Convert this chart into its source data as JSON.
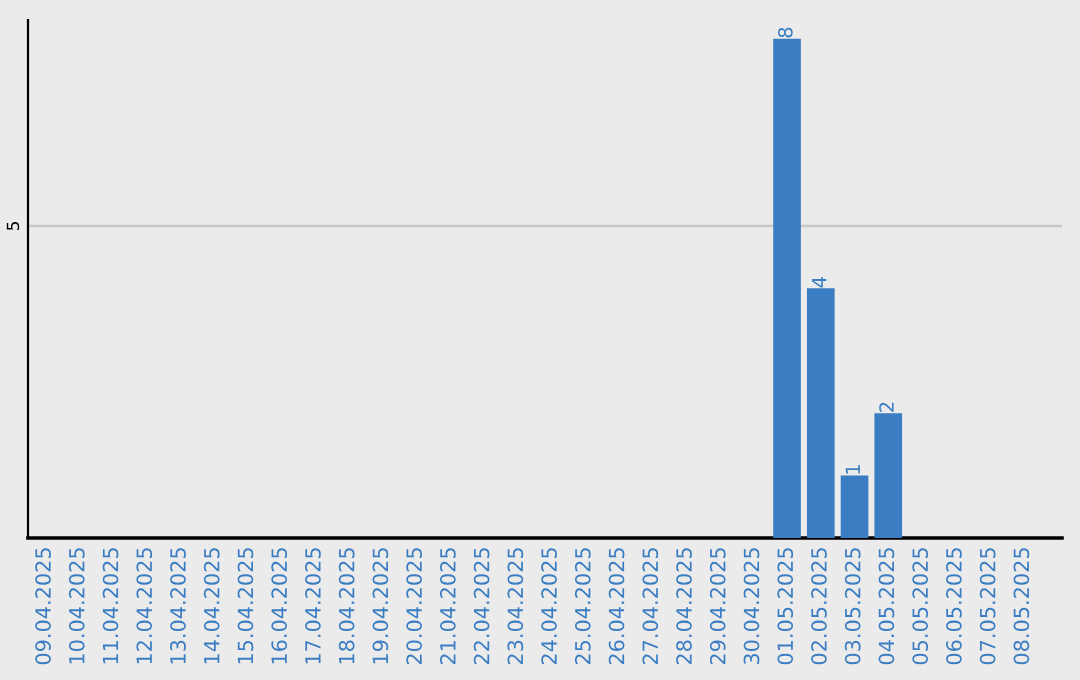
{
  "chart_data": {
    "type": "bar",
    "categories": [
      "09.04.2025",
      "10.04.2025",
      "11.04.2025",
      "12.04.2025",
      "13.04.2025",
      "14.04.2025",
      "15.04.2025",
      "16.04.2025",
      "17.04.2025",
      "18.04.2025",
      "19.04.2025",
      "20.04.2025",
      "21.04.2025",
      "22.04.2025",
      "23.04.2025",
      "24.04.2025",
      "25.04.2025",
      "26.04.2025",
      "27.04.2025",
      "28.04.2025",
      "29.04.2025",
      "30.04.2025",
      "01.05.2025",
      "02.05.2025",
      "03.05.2025",
      "04.05.2025",
      "05.05.2025",
      "06.05.2025",
      "07.05.2025",
      "08.05.2025"
    ],
    "values": [
      null,
      null,
      null,
      null,
      null,
      null,
      null,
      null,
      null,
      null,
      null,
      null,
      null,
      null,
      null,
      null,
      null,
      null,
      null,
      null,
      null,
      null,
      8,
      4,
      1,
      2,
      null,
      null,
      null,
      null
    ],
    "color": "#3b7dc2",
    "ylim": [
      0,
      8.3
    ],
    "yticks": [
      5
    ],
    "grid": "y",
    "data_labels": true
  }
}
